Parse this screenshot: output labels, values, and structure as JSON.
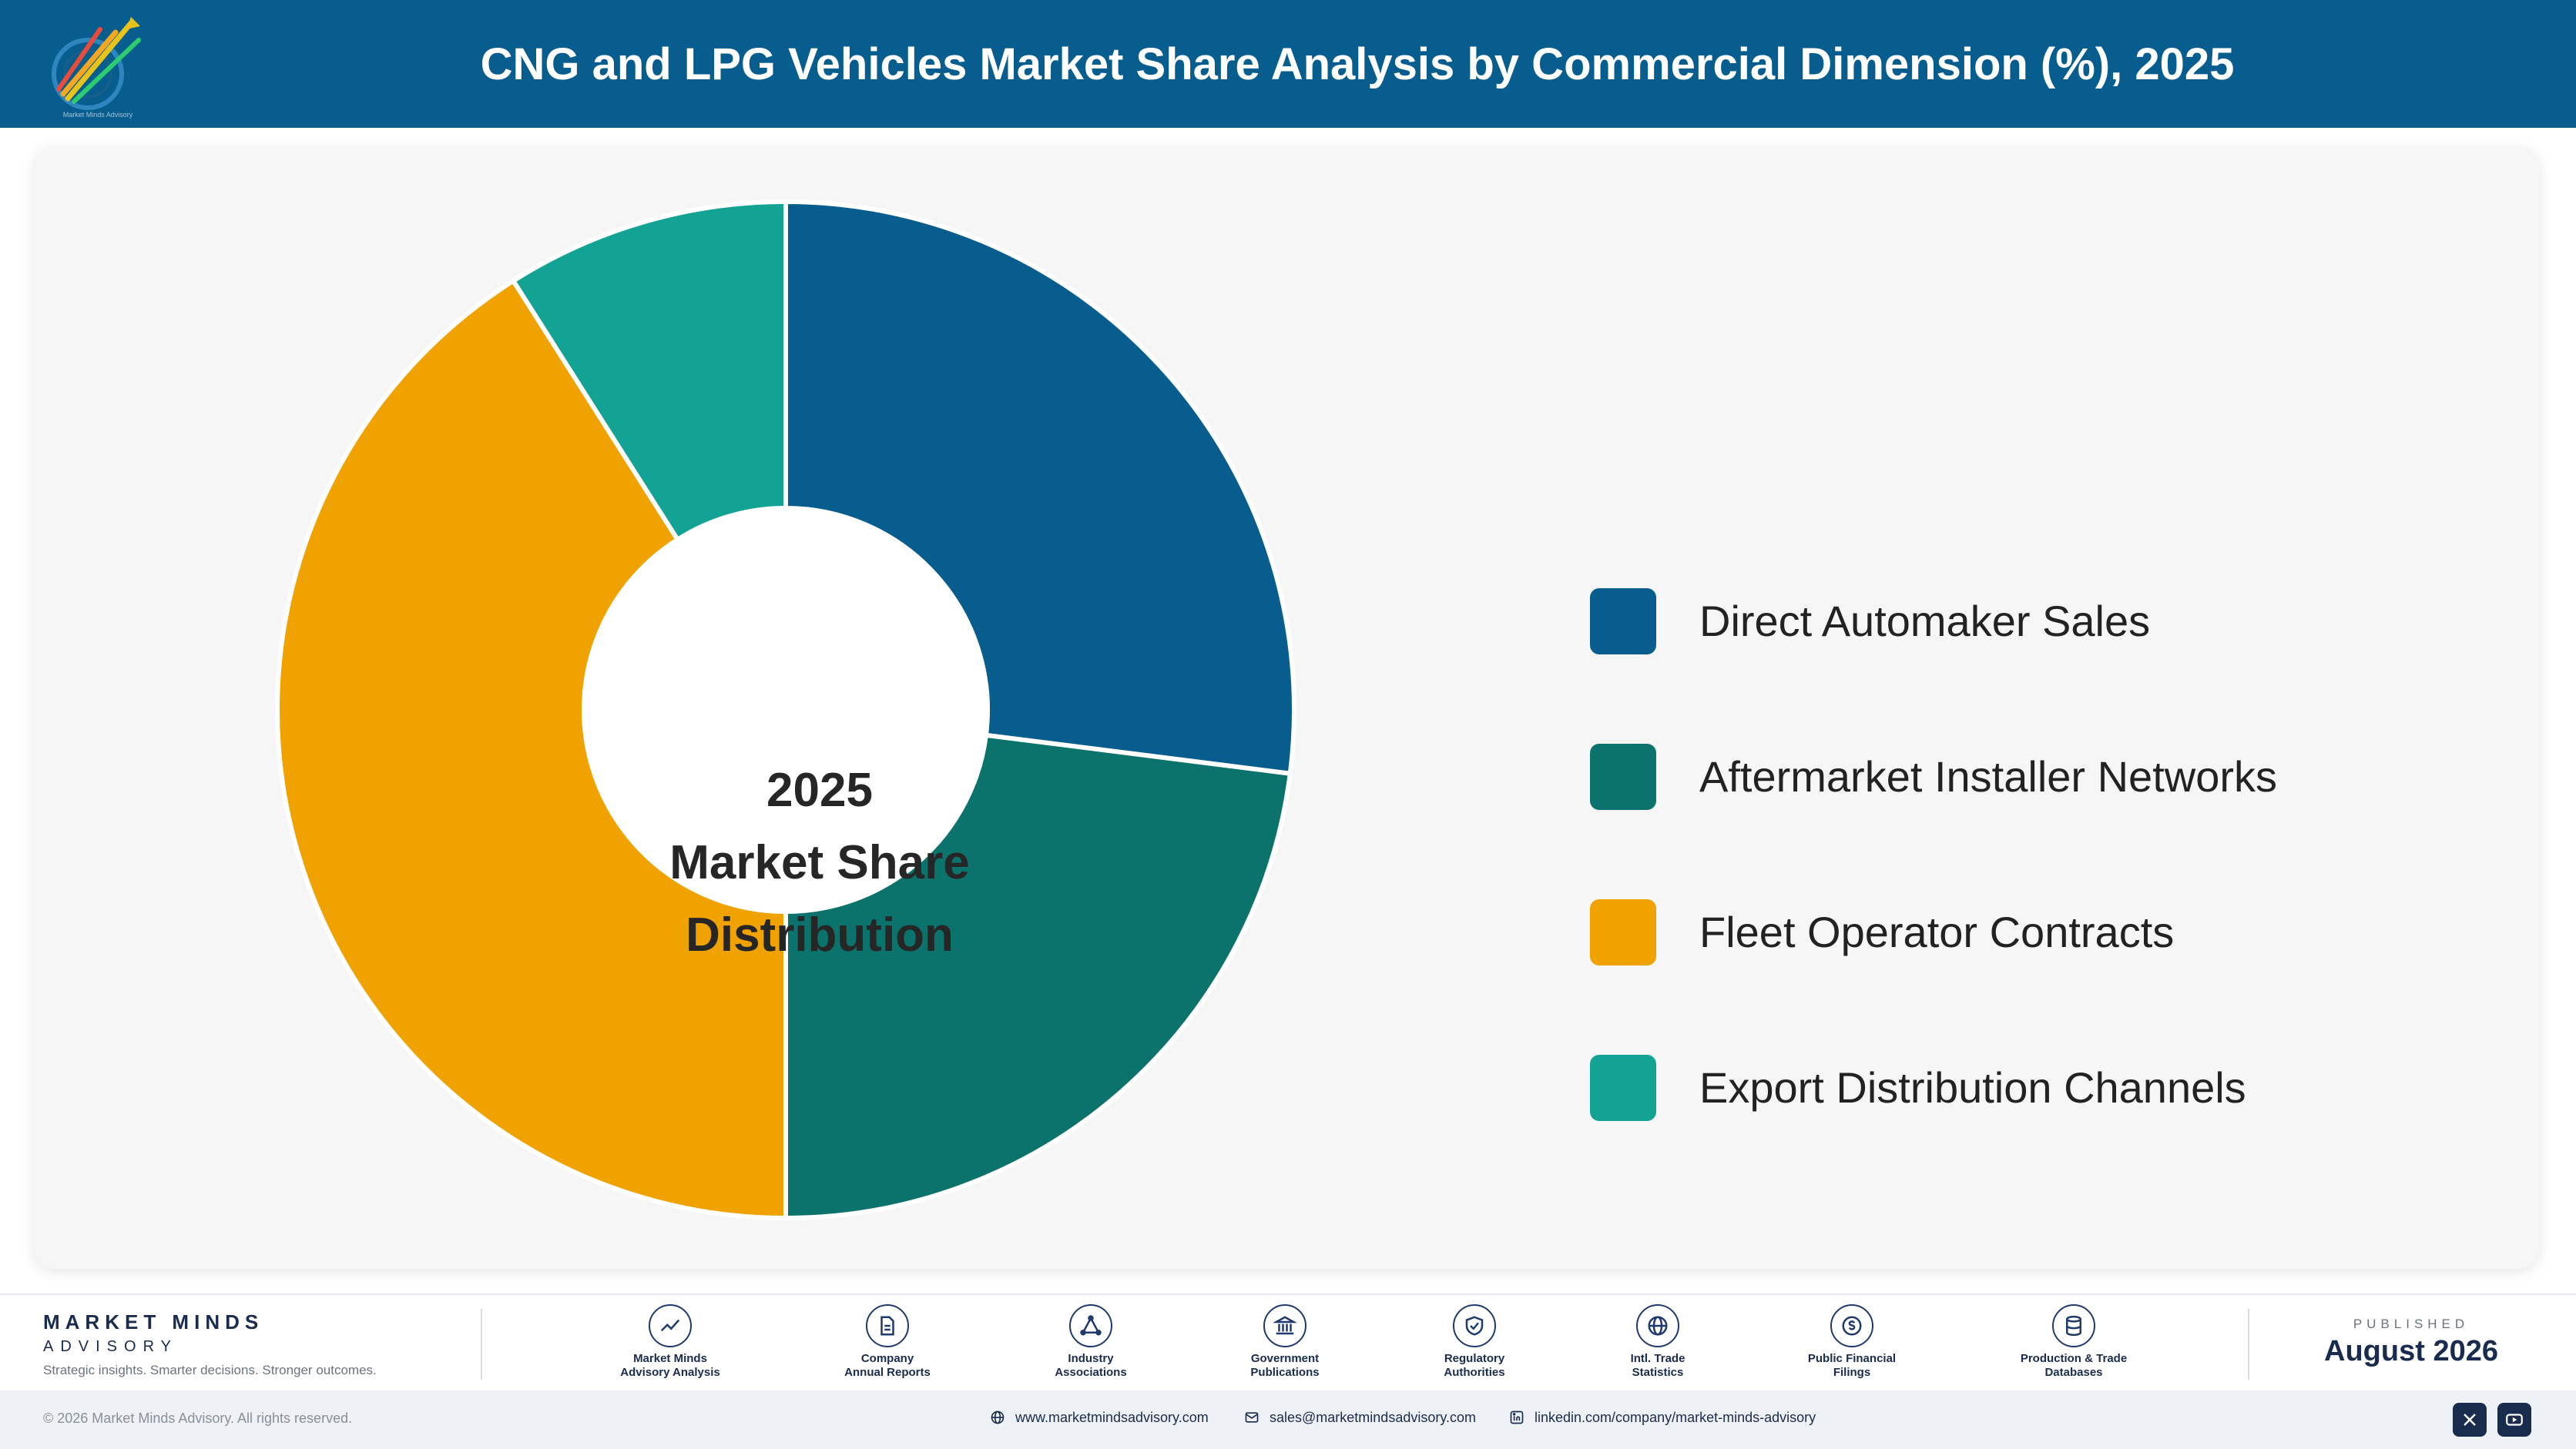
{
  "header": {
    "title": "CNG and LPG Vehicles Market Share Analysis by Commercial Dimension (%), 2025",
    "logo_icon": "market-minds-logo"
  },
  "chart_data": {
    "type": "donut",
    "title": "CNG and LPG Vehicles Market Share Analysis by Commercial Dimension (%), 2025",
    "center_label": [
      "2025",
      "Market Share",
      "Distribution"
    ],
    "categories": [
      "Direct Automaker Sales",
      "Aftermarket Installer Networks",
      "Fleet Operator Contracts",
      "Export Distribution Channels"
    ],
    "values": [
      27,
      23,
      41,
      9
    ],
    "unit": "%",
    "colors": [
      "#075e8e",
      "#0c736c",
      "#efa200",
      "#12a394"
    ],
    "legend_position": "right",
    "start_angle_deg": 0,
    "direction": "clockwise"
  },
  "footer": {
    "brand_name": "MARKET MINDS",
    "brand_sub": "ADVISORY",
    "tagline": "Strategic insights. Smarter decisions. Stronger outcomes.",
    "sources": [
      {
        "label_1": "Market Minds",
        "label_2": "Advisory Analysis",
        "icon": "trend-line-icon"
      },
      {
        "label_1": "Company",
        "label_2": "Annual Reports",
        "icon": "document-icon"
      },
      {
        "label_1": "Industry",
        "label_2": "Associations",
        "icon": "network-icon"
      },
      {
        "label_1": "Government",
        "label_2": "Publications",
        "icon": "government-building-icon"
      },
      {
        "label_1": "Regulatory",
        "label_2": "Authorities",
        "icon": "shield-check-icon"
      },
      {
        "label_1": "Intl. Trade",
        "label_2": "Statistics",
        "icon": "globe-icon"
      },
      {
        "label_1": "Public Financial",
        "label_2": "Filings",
        "icon": "coin-icon"
      },
      {
        "label_1": "Production & Trade",
        "label_2": "Databases",
        "icon": "database-icon"
      }
    ],
    "published_label": "PUBLISHED",
    "published_date": "August 2026",
    "copyright": "© 2026 Market Minds Advisory. All rights reserved.",
    "website": "www.marketmindsadvisory.com",
    "email": "sales@marketmindsadvisory.com",
    "linkedin": "linkedin.com/company/market-minds-advisory",
    "social": [
      "x-icon",
      "youtube-icon"
    ]
  }
}
